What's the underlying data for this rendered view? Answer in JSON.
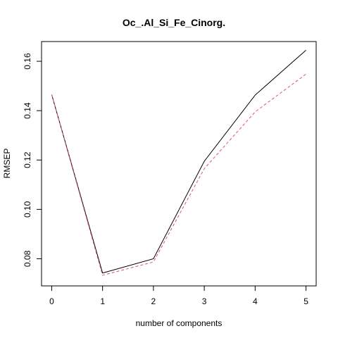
{
  "chart_data": {
    "type": "line",
    "title": "Oc_.Al_Si_Fe_Cinorg.",
    "xlabel": "number of components",
    "ylabel": "RMSEP",
    "x": [
      0,
      1,
      2,
      3,
      4,
      5
    ],
    "x_ticks": [
      "0",
      "1",
      "2",
      "3",
      "4",
      "5"
    ],
    "y_ticks": [
      "0.08",
      "0.10",
      "0.12",
      "0.14",
      "0.16"
    ],
    "y_tick_values": [
      0.08,
      0.1,
      0.12,
      0.14,
      0.16
    ],
    "xlim": [
      -0.2,
      5.2
    ],
    "ylim": [
      0.069,
      0.168
    ],
    "grid": false,
    "legend": "none",
    "series": [
      {
        "style": "solid",
        "color": "#000000",
        "values": [
          0.1465,
          0.0742,
          0.08,
          0.1195,
          0.1463,
          0.1645
        ]
      },
      {
        "style": "dashed",
        "color": "#DF536B",
        "values": [
          0.1465,
          0.0733,
          0.0787,
          0.1165,
          0.1395,
          0.1548
        ]
      }
    ]
  }
}
